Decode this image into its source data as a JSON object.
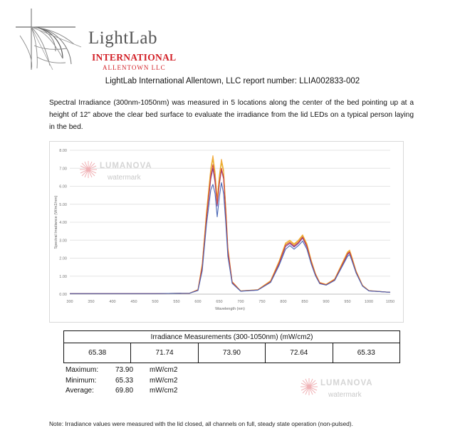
{
  "logo": {
    "name": "LightLab",
    "line2": "INTERNATIONAL",
    "line3": "ALLENTOWN LLC"
  },
  "report_title": "LightLab International Allentown, LLC report number: LLIA002833-002",
  "intro": "Spectral Irradiance (300nm-1050nm) was measured in 5 locations along the center of the bed pointing up at a height of 12\" above the clear bed surface to evaluate the irradiance from the lid LEDs on a typical person laying in the bed.",
  "watermark": {
    "brand": "LUMANOVA",
    "sub": "watermark"
  },
  "chart_data": {
    "type": "line",
    "xlabel": "Wavelength (nm)",
    "ylabel": "Spectral Irradiance (W/m2/nm)",
    "xlim": [
      300,
      1050
    ],
    "ylim": [
      0,
      8
    ],
    "x_ticks": [
      "300",
      "350",
      "400",
      "450",
      "500",
      "550",
      "600",
      "650",
      "700",
      "750",
      "800",
      "850",
      "900",
      "950",
      "1000",
      "1050"
    ],
    "y_ticks": [
      "0.00",
      "1.00",
      "2.00",
      "3.00",
      "4.00",
      "5.00",
      "6.00",
      "7.00",
      "8.00"
    ],
    "grid": true,
    "legend": "none",
    "x": [
      300,
      400,
      500,
      580,
      600,
      610,
      620,
      630,
      635,
      640,
      645,
      650,
      655,
      660,
      665,
      670,
      680,
      700,
      740,
      770,
      790,
      805,
      815,
      825,
      835,
      845,
      855,
      865,
      875,
      885,
      900,
      920,
      940,
      950,
      955,
      960,
      970,
      985,
      1000,
      1050
    ],
    "series": [
      {
        "color": "#f2a93b",
        "values": [
          0.03,
          0.03,
          0.03,
          0.05,
          0.25,
          1.7,
          4.6,
          7.0,
          7.7,
          6.8,
          5.3,
          6.6,
          7.5,
          6.9,
          4.9,
          2.6,
          0.7,
          0.18,
          0.25,
          0.75,
          1.85,
          2.85,
          3.0,
          2.8,
          3.0,
          3.3,
          2.8,
          1.9,
          1.15,
          0.65,
          0.55,
          0.85,
          1.85,
          2.35,
          2.45,
          2.1,
          1.3,
          0.5,
          0.2,
          0.1
        ]
      },
      {
        "color": "#e8b02c",
        "values": [
          0.03,
          0.03,
          0.03,
          0.05,
          0.24,
          1.65,
          4.5,
          6.9,
          7.5,
          6.7,
          5.2,
          6.5,
          7.3,
          6.8,
          4.8,
          2.5,
          0.7,
          0.18,
          0.24,
          0.72,
          1.8,
          2.78,
          2.95,
          2.75,
          2.95,
          3.25,
          2.75,
          1.85,
          1.12,
          0.63,
          0.53,
          0.83,
          1.8,
          2.3,
          2.4,
          2.05,
          1.28,
          0.48,
          0.19,
          0.1
        ]
      },
      {
        "color": "#7a3fa0",
        "values": [
          0.03,
          0.03,
          0.03,
          0.05,
          0.22,
          1.5,
          4.2,
          6.4,
          7.0,
          6.2,
          4.9,
          6.1,
          6.9,
          6.4,
          4.5,
          2.4,
          0.66,
          0.17,
          0.23,
          0.68,
          1.7,
          2.65,
          2.82,
          2.62,
          2.82,
          3.12,
          2.62,
          1.76,
          1.07,
          0.6,
          0.51,
          0.79,
          1.72,
          2.2,
          2.3,
          1.96,
          1.22,
          0.46,
          0.18,
          0.1
        ]
      },
      {
        "color": "#d1453a",
        "values": [
          0.03,
          0.03,
          0.03,
          0.05,
          0.23,
          1.55,
          4.3,
          6.6,
          7.2,
          6.4,
          5.0,
          6.2,
          7.0,
          6.5,
          4.6,
          2.45,
          0.67,
          0.17,
          0.23,
          0.7,
          1.75,
          2.72,
          2.88,
          2.68,
          2.88,
          3.18,
          2.68,
          1.8,
          1.1,
          0.62,
          0.52,
          0.81,
          1.76,
          2.25,
          2.35,
          2.0,
          1.25,
          0.47,
          0.19,
          0.1
        ]
      },
      {
        "color": "#4a67b5",
        "values": [
          0.03,
          0.03,
          0.03,
          0.05,
          0.2,
          1.3,
          3.9,
          5.8,
          6.1,
          5.6,
          4.3,
          5.4,
          6.2,
          5.6,
          4.0,
          2.1,
          0.6,
          0.16,
          0.22,
          0.65,
          1.6,
          2.5,
          2.7,
          2.5,
          2.7,
          2.95,
          2.5,
          1.68,
          1.02,
          0.58,
          0.5,
          0.76,
          1.65,
          2.1,
          2.2,
          1.88,
          1.18,
          0.45,
          0.18,
          0.1
        ]
      }
    ]
  },
  "table": {
    "header": "Irradiance Measurements (300-1050nm) (mW/cm2)",
    "values": [
      "65.38",
      "71.74",
      "73.90",
      "72.64",
      "65.33"
    ]
  },
  "stats": [
    {
      "label": "Maximum:",
      "value": "73.90",
      "unit": "mW/cm2"
    },
    {
      "label": "Minimum:",
      "value": "65.33",
      "unit": "mW/cm2"
    },
    {
      "label": "Average:",
      "value": "69.80",
      "unit": "mW/cm2"
    }
  ],
  "note": "Note: Irradiance values were measured with the lid closed, all channels on full, steady state operation (non-pulsed)."
}
